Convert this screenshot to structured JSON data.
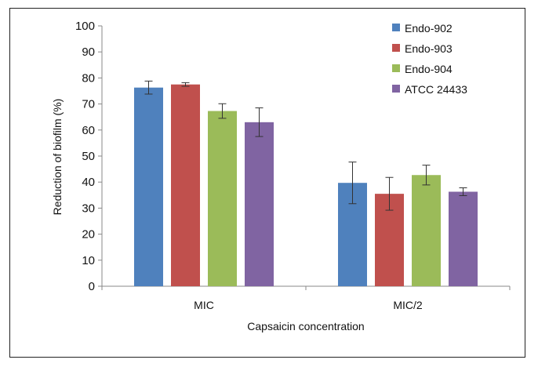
{
  "chart_data": {
    "type": "bar",
    "title": "",
    "xlabel": "Capsaicin concentration",
    "ylabel": "Reduction of biofilm (%)",
    "ylim": [
      0,
      100
    ],
    "yticks": [
      0,
      10,
      20,
      30,
      40,
      50,
      60,
      70,
      80,
      90,
      100
    ],
    "categories": [
      "MIC",
      "MIC/2"
    ],
    "legend_position": "top-right",
    "grid": false,
    "series": [
      {
        "name": "Endo-902",
        "color": "#4f81bd",
        "values": [
          76.3,
          39.7
        ],
        "errors": [
          2.5,
          8.0
        ]
      },
      {
        "name": "Endo-903",
        "color": "#c0504d",
        "values": [
          77.5,
          35.5
        ],
        "errors": [
          0.7,
          6.3
        ]
      },
      {
        "name": "Endo-904",
        "color": "#9bbb59",
        "values": [
          67.3,
          42.7
        ],
        "errors": [
          2.8,
          3.8
        ]
      },
      {
        "name": "ATCC 24433",
        "color": "#8064a2",
        "values": [
          63.0,
          36.3
        ],
        "errors": [
          5.5,
          1.5
        ]
      }
    ]
  }
}
